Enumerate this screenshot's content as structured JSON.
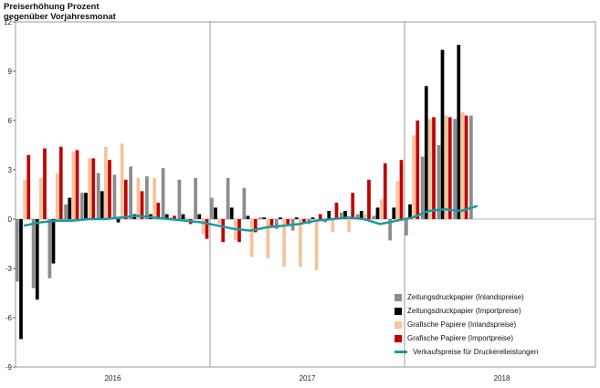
{
  "chart_data": {
    "type": "bar",
    "title": [
      "Preiserhöhung Prozent",
      "gegenüber Vorjahresmonat"
    ],
    "ylim": [
      -9,
      12
    ],
    "yticks": [
      -9,
      -6,
      -3,
      0,
      3,
      6,
      9,
      12
    ],
    "years": [
      "2016",
      "2017",
      "2018"
    ],
    "months_per_year": 12,
    "grid": "vertical lines at year boundaries",
    "legend_position": "bottom-right",
    "series": [
      {
        "name": "Zeitungsdruckpapier (Inlandspreise)",
        "kind": "bar",
        "color": "#8c8c8c",
        "values": [
          -3.8,
          -4.2,
          -3.6,
          0.9,
          1.6,
          2.8,
          2.7,
          3.2,
          2.6,
          3.1,
          2.4,
          2.5,
          1.3,
          2.5,
          1.9,
          0.1,
          -0.6,
          -0.7,
          -0.3,
          -0.2,
          0.4,
          0.3,
          0.2,
          -1.3,
          -1.0,
          3.8,
          4.5,
          6.1,
          6.3
        ]
      },
      {
        "name": "Zeitungsdruckpapier (Importpreise)",
        "kind": "bar",
        "color": "#000000",
        "values": [
          -7.3,
          -4.9,
          -2.7,
          1.3,
          1.6,
          1.7,
          -0.2,
          0.3,
          0.3,
          0.3,
          0.3,
          0.3,
          0.7,
          0.7,
          0.2,
          0.1,
          0.1,
          0.1,
          0.1,
          0.5,
          0.5,
          0.5,
          0.7,
          0.7,
          0.9,
          8.1,
          10.3,
          10.6
        ]
      },
      {
        "name": "Grafische Papiere (Inlandspreise)",
        "kind": "bar",
        "color": "#f6c39a",
        "values": [
          2.4,
          2.5,
          2.8,
          4.1,
          3.7,
          4.4,
          4.6,
          2.5,
          2.5,
          0.1,
          0.1,
          -0.9,
          -0.3,
          -1.3,
          -2.3,
          -2.4,
          -2.9,
          -2.9,
          -3.1,
          -0.8,
          -0.8,
          0.3,
          1.2,
          2.3,
          5.1,
          6.1,
          6.3,
          6.5
        ]
      },
      {
        "name": "Grafische Papiere (Importpreise)",
        "kind": "bar",
        "color": "#c00000",
        "values": [
          3.9,
          4.3,
          4.4,
          4.2,
          3.7,
          3.6,
          2.4,
          1.7,
          1.0,
          0.2,
          -0.3,
          -1.2,
          -1.4,
          -1.4,
          -0.8,
          -0.4,
          -0.3,
          -0.2,
          0.3,
          1.0,
          1.6,
          2.4,
          3.4,
          3.6,
          6.0,
          6.2,
          6.2,
          6.3
        ]
      },
      {
        "name": "Verkaufspreise für Druckereileistungen",
        "kind": "line",
        "color": "#1b9aa0",
        "values": [
          -0.4,
          -0.2,
          -0.1,
          -0.1,
          0.0,
          0.0,
          0.1,
          0.2,
          0.1,
          0.0,
          -0.1,
          -0.2,
          -0.4,
          -0.6,
          -0.7,
          -0.5,
          -0.4,
          -0.3,
          -0.1,
          0.0,
          0.1,
          0.0,
          -0.3,
          -0.1,
          0.1,
          0.5,
          0.6,
          0.5,
          0.8
        ]
      }
    ]
  }
}
